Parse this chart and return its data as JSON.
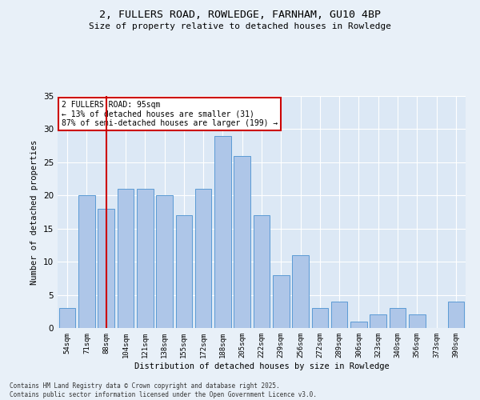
{
  "title_line1": "2, FULLERS ROAD, ROWLEDGE, FARNHAM, GU10 4BP",
  "title_line2": "Size of property relative to detached houses in Rowledge",
  "xlabel": "Distribution of detached houses by size in Rowledge",
  "ylabel": "Number of detached properties",
  "bar_labels": [
    "54sqm",
    "71sqm",
    "88sqm",
    "104sqm",
    "121sqm",
    "138sqm",
    "155sqm",
    "172sqm",
    "188sqm",
    "205sqm",
    "222sqm",
    "239sqm",
    "256sqm",
    "272sqm",
    "289sqm",
    "306sqm",
    "323sqm",
    "340sqm",
    "356sqm",
    "373sqm",
    "390sqm"
  ],
  "bar_values": [
    3,
    20,
    18,
    21,
    21,
    20,
    17,
    21,
    29,
    26,
    17,
    8,
    11,
    3,
    4,
    1,
    2,
    3,
    2,
    0,
    4
  ],
  "bar_color": "#aec6e8",
  "bar_edge_color": "#5b9bd5",
  "vline_x": 2,
  "vline_color": "#cc0000",
  "annotation_text": "2 FULLERS ROAD: 95sqm\n← 13% of detached houses are smaller (31)\n87% of semi-detached houses are larger (199) →",
  "annotation_box_color": "#ffffff",
  "annotation_box_edge": "#cc0000",
  "ylim": [
    0,
    35
  ],
  "yticks": [
    0,
    5,
    10,
    15,
    20,
    25,
    30,
    35
  ],
  "footer_text": "Contains HM Land Registry data © Crown copyright and database right 2025.\nContains public sector information licensed under the Open Government Licence v3.0.",
  "bg_color": "#e8f0f8",
  "plot_bg_color": "#dce8f5"
}
